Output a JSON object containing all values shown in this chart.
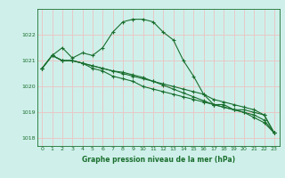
{
  "xlabel": "Graphe pression niveau de la mer (hPa)",
  "bg_color": "#cff0ea",
  "grid_color": "#e8c8c8",
  "line_color": "#1a6e2e",
  "marker": "+",
  "x": [
    0,
    1,
    2,
    3,
    4,
    5,
    6,
    7,
    8,
    9,
    10,
    11,
    12,
    13,
    14,
    15,
    16,
    17,
    18,
    19,
    20,
    21,
    22,
    23
  ],
  "line1": [
    1020.7,
    1021.2,
    1021.5,
    1021.1,
    1021.3,
    1021.2,
    1021.5,
    1022.1,
    1022.5,
    1022.6,
    1022.6,
    1022.5,
    1022.1,
    1021.8,
    1021.0,
    1020.4,
    1019.7,
    1019.3,
    1019.3,
    1019.1,
    1019.0,
    1018.8,
    1018.6,
    1018.2
  ],
  "line2": [
    1020.7,
    1021.2,
    1021.0,
    1021.0,
    1020.9,
    1020.7,
    1020.6,
    1020.4,
    1020.3,
    1020.2,
    1020.0,
    1019.9,
    1019.8,
    1019.7,
    1019.6,
    1019.5,
    1019.4,
    1019.3,
    1019.2,
    1019.1,
    1019.1,
    1019.0,
    1018.9,
    1018.2
  ],
  "line3": [
    1020.7,
    1021.2,
    1021.0,
    1021.0,
    1020.9,
    1020.8,
    1020.7,
    1020.6,
    1020.5,
    1020.4,
    1020.3,
    1020.2,
    1020.1,
    1020.0,
    1019.9,
    1019.8,
    1019.7,
    1019.5,
    1019.4,
    1019.3,
    1019.2,
    1019.1,
    1018.9,
    1018.2
  ],
  "line4": [
    1020.7,
    1021.2,
    1021.0,
    1021.0,
    1020.9,
    1020.8,
    1020.7,
    1020.6,
    1020.55,
    1020.45,
    1020.35,
    1020.2,
    1020.05,
    1019.9,
    1019.75,
    1019.6,
    1019.45,
    1019.3,
    1019.2,
    1019.1,
    1019.0,
    1018.9,
    1018.7,
    1018.2
  ],
  "ylim": [
    1017.7,
    1023.0
  ],
  "yticks": [
    1018,
    1019,
    1020,
    1021,
    1022
  ],
  "xticks": [
    0,
    1,
    2,
    3,
    4,
    5,
    6,
    7,
    8,
    9,
    10,
    11,
    12,
    13,
    14,
    15,
    16,
    17,
    18,
    19,
    20,
    21,
    22,
    23
  ],
  "marker_size": 3,
  "linewidth": 0.8
}
